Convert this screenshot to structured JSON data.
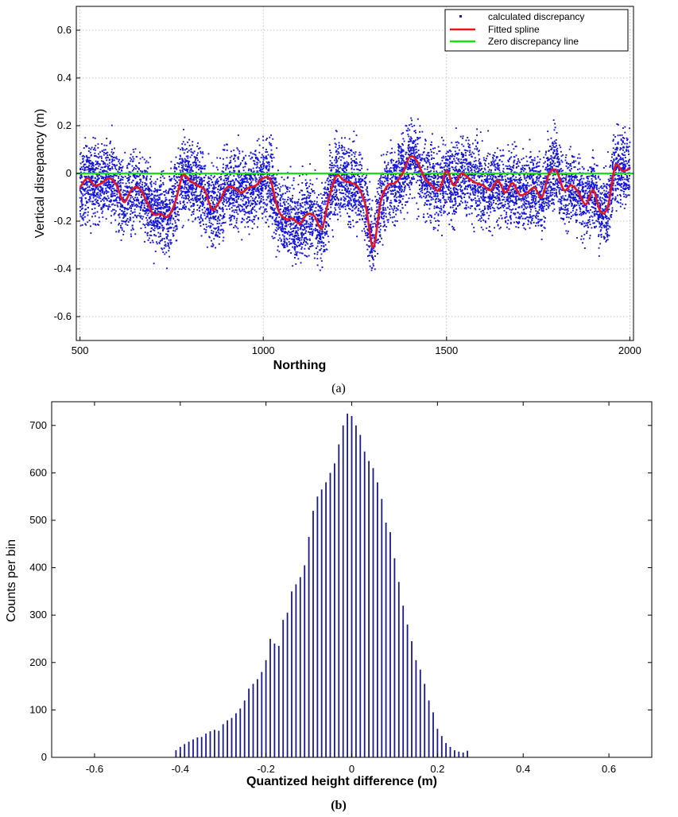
{
  "chart_data": [
    {
      "type": "scatter",
      "panel_label": "a",
      "title": "",
      "xlabel": "Northing",
      "ylabel": "Vertical disrepancy (m)",
      "xlim": [
        490,
        2010
      ],
      "ylim": [
        -0.7,
        0.7
      ],
      "xticks": [
        500,
        1000,
        1500,
        2000
      ],
      "xtick_labels": [
        "500",
        "1000",
        "1500",
        "2000"
      ],
      "yticks": [
        -0.6,
        -0.4,
        -0.2,
        0,
        0.2,
        0.4,
        0.6
      ],
      "ytick_labels": [
        "-0.6",
        "-0.4",
        "-0.2",
        "0",
        "0.2",
        "0.4",
        "0.6"
      ],
      "grid": true,
      "legend_position": "top-right",
      "legend": [
        {
          "label": "calculated discrepancy",
          "color": "#1414d8",
          "marker": "dot"
        },
        {
          "label": "Fitted spline",
          "color": "#e8141e",
          "marker": "line"
        },
        {
          "label": "Zero discrepancy line",
          "color": "#14e014",
          "marker": "line"
        }
      ],
      "scatter_spread": 0.13,
      "scatter_clip": [
        -0.41,
        0.27
      ],
      "scatter_points_approx": 9000,
      "series": [
        {
          "name": "Fitted spline",
          "x": [
            500,
            520,
            540,
            560,
            580,
            600,
            620,
            640,
            660,
            680,
            700,
            720,
            740,
            760,
            780,
            800,
            820,
            840,
            860,
            880,
            900,
            920,
            940,
            960,
            980,
            1000,
            1020,
            1040,
            1060,
            1080,
            1100,
            1120,
            1140,
            1160,
            1180,
            1200,
            1220,
            1240,
            1260,
            1280,
            1300,
            1320,
            1340,
            1360,
            1380,
            1400,
            1420,
            1440,
            1460,
            1480,
            1500,
            1520,
            1540,
            1560,
            1580,
            1600,
            1620,
            1640,
            1660,
            1680,
            1700,
            1720,
            1740,
            1760,
            1780,
            1800,
            1820,
            1840,
            1860,
            1880,
            1900,
            1920,
            1940,
            1960,
            1980,
            2000
          ],
          "y": [
            -0.06,
            -0.02,
            -0.05,
            -0.04,
            -0.02,
            -0.05,
            -0.12,
            -0.07,
            -0.06,
            -0.11,
            -0.17,
            -0.17,
            -0.18,
            -0.12,
            -0.01,
            -0.03,
            -0.05,
            -0.07,
            -0.15,
            -0.12,
            -0.06,
            -0.06,
            -0.08,
            -0.06,
            -0.05,
            -0.02,
            -0.03,
            -0.15,
            -0.19,
            -0.19,
            -0.21,
            -0.17,
            -0.18,
            -0.23,
            -0.1,
            -0.01,
            -0.03,
            -0.04,
            -0.06,
            -0.14,
            -0.31,
            -0.12,
            -0.05,
            -0.04,
            0,
            0.07,
            0.05,
            -0.02,
            -0.05,
            -0.07,
            0.01,
            -0.05,
            0,
            -0.02,
            -0.04,
            -0.05,
            -0.07,
            -0.03,
            -0.08,
            -0.04,
            -0.09,
            -0.08,
            -0.06,
            -0.1,
            0,
            0.01,
            -0.07,
            -0.05,
            -0.08,
            -0.13,
            -0.07,
            -0.16,
            -0.14,
            0.03,
            0.01,
            0.02
          ]
        },
        {
          "name": "Zero discrepancy line",
          "x": [
            490,
            2010
          ],
          "y": [
            0,
            0
          ]
        }
      ]
    },
    {
      "type": "bar",
      "panel_label": "b",
      "title": "",
      "xlabel": "Quantized height difference (m)",
      "ylabel": "Counts per bin",
      "xlim": [
        -0.7,
        0.7
      ],
      "ylim": [
        0,
        750
      ],
      "xticks": [
        -0.6,
        -0.4,
        -0.2,
        0,
        0.2,
        0.4,
        0.6
      ],
      "xtick_labels": [
        "-0.6",
        "-0.4",
        "-0.2",
        "0",
        "0.2",
        "0.4",
        "0.6"
      ],
      "yticks": [
        0,
        100,
        200,
        300,
        400,
        500,
        600,
        700
      ],
      "ytick_labels": [
        "0",
        "100",
        "200",
        "300",
        "400",
        "500",
        "600",
        "700"
      ],
      "grid": false,
      "bar_color": "#1a1a8c",
      "categories": [
        -0.41,
        -0.4,
        -0.39,
        -0.38,
        -0.37,
        -0.36,
        -0.35,
        -0.34,
        -0.33,
        -0.32,
        -0.31,
        -0.3,
        -0.29,
        -0.28,
        -0.27,
        -0.26,
        -0.25,
        -0.24,
        -0.23,
        -0.22,
        -0.21,
        -0.2,
        -0.19,
        -0.18,
        -0.17,
        -0.16,
        -0.15,
        -0.14,
        -0.13,
        -0.12,
        -0.11,
        -0.1,
        -0.09,
        -0.08,
        -0.07,
        -0.06,
        -0.05,
        -0.04,
        -0.03,
        -0.02,
        -0.01,
        0,
        0.01,
        0.02,
        0.03,
        0.04,
        0.05,
        0.06,
        0.07,
        0.08,
        0.09,
        0.1,
        0.11,
        0.12,
        0.13,
        0.14,
        0.15,
        0.16,
        0.17,
        0.18,
        0.19,
        0.2,
        0.21,
        0.22,
        0.23,
        0.24,
        0.25,
        0.26,
        0.27
      ],
      "values": [
        15,
        22,
        28,
        33,
        38,
        42,
        43,
        50,
        55,
        58,
        56,
        70,
        78,
        83,
        93,
        103,
        120,
        145,
        155,
        165,
        180,
        205,
        250,
        240,
        235,
        290,
        305,
        350,
        365,
        380,
        405,
        465,
        520,
        550,
        565,
        580,
        600,
        620,
        660,
        700,
        725,
        720,
        700,
        680,
        645,
        625,
        610,
        580,
        545,
        495,
        475,
        420,
        370,
        320,
        280,
        245,
        205,
        185,
        155,
        120,
        95,
        60,
        45,
        30,
        22,
        15,
        12,
        10,
        14
      ]
    }
  ]
}
